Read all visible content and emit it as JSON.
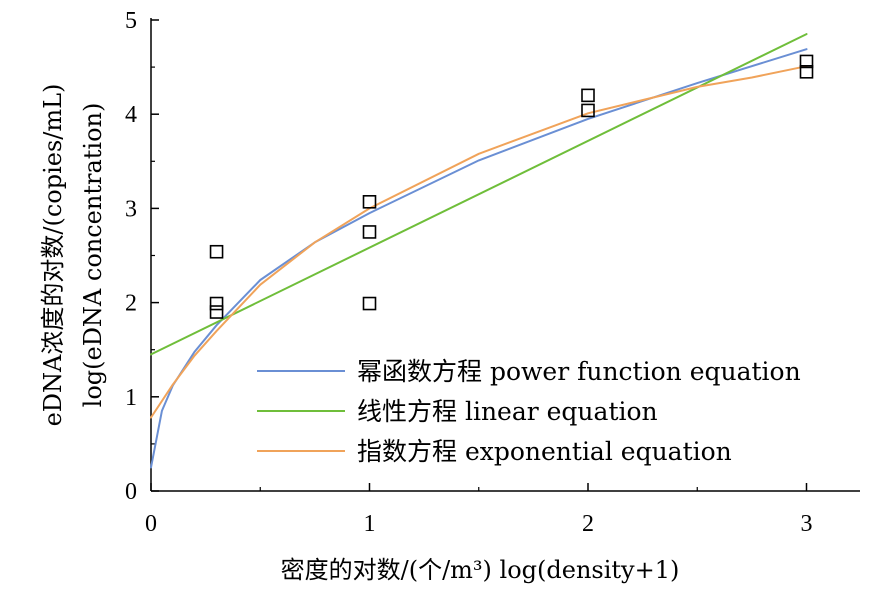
{
  "chart_data": {
    "type": "scatter",
    "xlabel": "密度的对数/(个/m³) log(density+1)",
    "ylabel_line1": "eDNA浓度的对数/(copies/mL)",
    "ylabel_line2": "log(eDNA concentration)",
    "xlim": [
      0,
      3.25
    ],
    "ylim": [
      0,
      5
    ],
    "x_ticks": [
      0,
      1,
      2,
      3
    ],
    "y_ticks": [
      0,
      1,
      2,
      3,
      4,
      5
    ],
    "grid": false,
    "legend_position": "lower-right",
    "points": [
      {
        "x": 0.3,
        "y": 2.54
      },
      {
        "x": 0.3,
        "y": 1.99
      },
      {
        "x": 0.3,
        "y": 1.9
      },
      {
        "x": 1.0,
        "y": 3.07
      },
      {
        "x": 1.0,
        "y": 2.75
      },
      {
        "x": 1.0,
        "y": 1.99
      },
      {
        "x": 2.0,
        "y": 4.2
      },
      {
        "x": 2.0,
        "y": 4.04
      },
      {
        "x": 3.0,
        "y": 4.56
      },
      {
        "x": 3.0,
        "y": 4.45
      }
    ],
    "series": [
      {
        "name": "幂函数方程 power function equation",
        "color": "#6a8fd4",
        "x": [
          0.0,
          0.05,
          0.1,
          0.2,
          0.3,
          0.5,
          0.75,
          1.0,
          1.5,
          2.0,
          2.5,
          3.0
        ],
        "y": [
          0.25,
          0.85,
          1.12,
          1.48,
          1.76,
          2.24,
          2.64,
          2.95,
          3.51,
          3.95,
          4.33,
          4.69
        ]
      },
      {
        "name": "线性方程 linear equation",
        "color": "#6fbe3a",
        "x": [
          0.0,
          3.0
        ],
        "y": [
          1.45,
          4.85
        ]
      },
      {
        "name": "指数方程 exponential equation",
        "color": "#f0a35a",
        "x": [
          0.0,
          0.1,
          0.2,
          0.3,
          0.5,
          0.75,
          1.0,
          1.5,
          2.0,
          2.5,
          2.75,
          3.0
        ],
        "y": [
          0.78,
          1.13,
          1.44,
          1.7,
          2.19,
          2.64,
          3.0,
          3.58,
          4.01,
          4.29,
          4.39,
          4.51
        ]
      }
    ]
  }
}
